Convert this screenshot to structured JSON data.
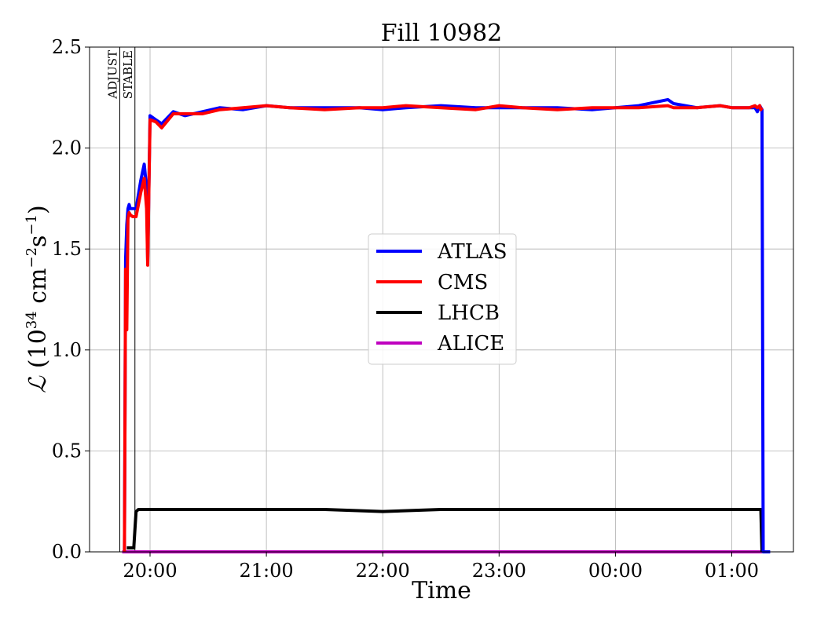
{
  "chart_data": {
    "type": "line",
    "title": "Fill 10982",
    "xlabel": "Time",
    "ylabel_parts": {
      "script": "ℒ",
      "open": "(10",
      "exp1": "34",
      "mid": " cm",
      "exp2": "−2",
      "s": "s",
      "exp3": "−1",
      "close": ")"
    },
    "x_unit": "hours since 00:00 of the day the fill began",
    "xlim": [
      19.48,
      25.53
    ],
    "ylim": [
      0.0,
      2.5
    ],
    "x_ticks": [
      {
        "x": 20,
        "label": "20:00"
      },
      {
        "x": 21,
        "label": "21:00"
      },
      {
        "x": 22,
        "label": "22:00"
      },
      {
        "x": 23,
        "label": "23:00"
      },
      {
        "x": 24,
        "label": "00:00"
      },
      {
        "x": 25,
        "label": "01:00"
      }
    ],
    "y_ticks": [
      {
        "y": 0.0,
        "label": "0.0"
      },
      {
        "y": 0.5,
        "label": "0.5"
      },
      {
        "y": 1.0,
        "label": "1.0"
      },
      {
        "y": 1.5,
        "label": "1.5"
      },
      {
        "y": 2.0,
        "label": "2.0"
      },
      {
        "y": 2.5,
        "label": "2.5"
      }
    ],
    "grid": true,
    "legend_position": "center",
    "beam_modes": [
      {
        "x": 19.74,
        "label": "ADJUST"
      },
      {
        "x": 19.87,
        "label": "STABLE"
      }
    ],
    "series": [
      {
        "name": "ATLAS",
        "color": "#0000ff",
        "x": [
          19.78,
          19.79,
          19.8,
          19.81,
          19.82,
          19.83,
          19.85,
          19.88,
          19.92,
          19.95,
          19.97,
          19.98,
          20.0,
          20.05,
          20.1,
          20.2,
          20.3,
          20.45,
          20.6,
          20.8,
          21.0,
          21.2,
          21.5,
          21.8,
          22.0,
          22.2,
          22.5,
          22.8,
          23.0,
          23.2,
          23.5,
          23.8,
          24.0,
          24.2,
          24.45,
          24.5,
          24.7,
          24.9,
          25.0,
          25.15,
          25.2,
          25.22,
          25.24,
          25.25,
          25.26,
          25.27,
          25.3,
          25.33
        ],
        "y": [
          0.0,
          1.45,
          1.62,
          1.7,
          1.72,
          1.7,
          1.7,
          1.7,
          1.84,
          1.92,
          1.8,
          1.44,
          2.16,
          2.14,
          2.12,
          2.18,
          2.16,
          2.18,
          2.2,
          2.19,
          2.21,
          2.2,
          2.2,
          2.2,
          2.19,
          2.2,
          2.21,
          2.2,
          2.2,
          2.2,
          2.2,
          2.19,
          2.2,
          2.21,
          2.24,
          2.22,
          2.2,
          2.21,
          2.2,
          2.2,
          2.2,
          2.18,
          2.21,
          2.2,
          2.19,
          0.0,
          0.0,
          0.0
        ]
      },
      {
        "name": "CMS",
        "color": "#ff0000",
        "x": [
          19.78,
          19.79,
          19.8,
          19.81,
          19.82,
          19.83,
          19.85,
          19.88,
          19.92,
          19.95,
          19.97,
          19.98,
          20.0,
          20.05,
          20.1,
          20.2,
          20.3,
          20.45,
          20.6,
          20.8,
          21.0,
          21.2,
          21.5,
          21.8,
          22.0,
          22.2,
          22.5,
          22.8,
          23.0,
          23.2,
          23.5,
          23.8,
          24.0,
          24.2,
          24.45,
          24.5,
          24.7,
          24.9,
          25.0,
          25.15,
          25.2,
          25.22,
          25.24,
          25.25,
          25.26
        ],
        "y": [
          0.0,
          1.4,
          1.1,
          1.65,
          1.68,
          1.67,
          1.66,
          1.66,
          1.78,
          1.85,
          1.7,
          1.42,
          2.14,
          2.13,
          2.1,
          2.17,
          2.17,
          2.17,
          2.19,
          2.2,
          2.21,
          2.2,
          2.19,
          2.2,
          2.2,
          2.21,
          2.2,
          2.19,
          2.21,
          2.2,
          2.19,
          2.2,
          2.2,
          2.2,
          2.21,
          2.2,
          2.2,
          2.21,
          2.2,
          2.2,
          2.21,
          2.2,
          2.21,
          2.19,
          2.2
        ]
      },
      {
        "name": "LHCB",
        "color": "#000000",
        "x": [
          19.8,
          19.86,
          19.88,
          19.9,
          20.0,
          20.5,
          21.0,
          21.5,
          22.0,
          22.5,
          23.0,
          23.5,
          24.0,
          24.5,
          25.0,
          25.2,
          25.25,
          25.26
        ],
        "y": [
          0.02,
          0.02,
          0.2,
          0.21,
          0.21,
          0.21,
          0.21,
          0.21,
          0.2,
          0.21,
          0.21,
          0.21,
          0.21,
          0.21,
          0.21,
          0.21,
          0.21,
          0.0
        ]
      },
      {
        "name": "ALICE",
        "color": "#bf00bf",
        "x": [
          19.76,
          25.26
        ],
        "y": [
          0.0,
          0.0
        ]
      }
    ]
  }
}
